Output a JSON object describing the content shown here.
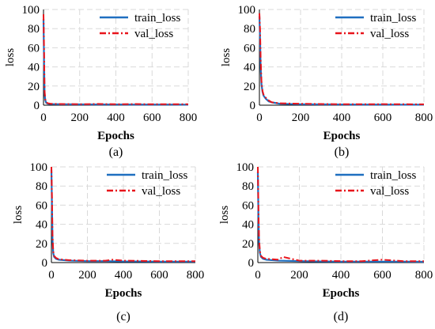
{
  "colors": {
    "train": "#1f6fc0",
    "val": "#e8141b",
    "grid": "#d9d9d9",
    "axis": "#000000",
    "text": "#000000"
  },
  "chart_data": [
    {
      "type": "line",
      "panel_label": "(a)",
      "xlabel": "Epochs",
      "ylabel": "loss",
      "xlim": [
        0,
        800
      ],
      "ylim": [
        0,
        100
      ],
      "xticks": [
        "0",
        "200",
        "400",
        "600",
        "800"
      ],
      "yticks": [
        "0",
        "20",
        "40",
        "60",
        "80",
        "100"
      ],
      "grid": true,
      "legend_position": "top-right",
      "series": [
        {
          "name": "train_loss",
          "style": "solid",
          "x": [
            0,
            3,
            6,
            10,
            15,
            25,
            40,
            100,
            200,
            300,
            400,
            500,
            600,
            700,
            800
          ],
          "y": [
            90,
            45,
            12,
            5,
            2.5,
            1.5,
            1.2,
            0.9,
            0.8,
            0.7,
            0.7,
            0.6,
            0.6,
            0.6,
            0.5
          ]
        },
        {
          "name": "val_loss",
          "style": "dashdot",
          "x": [
            0,
            3,
            6,
            10,
            15,
            25,
            40,
            100,
            200,
            300,
            400,
            500,
            600,
            700,
            800
          ],
          "y": [
            95,
            60,
            15,
            6,
            3,
            2,
            1.5,
            1.2,
            1,
            1.3,
            1,
            1.2,
            1,
            1,
            1
          ]
        }
      ]
    },
    {
      "type": "line",
      "panel_label": "(b)",
      "xlabel": "Epochs",
      "ylabel": "loss",
      "xlim": [
        0,
        800
      ],
      "ylim": [
        0,
        100
      ],
      "xticks": [
        "0",
        "200",
        "400",
        "600",
        "800"
      ],
      "yticks": [
        "0",
        "20",
        "40",
        "60",
        "80",
        "100"
      ],
      "grid": true,
      "legend_position": "top-right",
      "series": [
        {
          "name": "train_loss",
          "style": "solid",
          "x": [
            0,
            3,
            6,
            10,
            15,
            20,
            30,
            45,
            60,
            100,
            200,
            300,
            400,
            500,
            600,
            700,
            800
          ],
          "y": [
            93,
            70,
            40,
            22,
            14,
            10,
            7,
            4,
            3,
            1.5,
            1,
            0.8,
            0.7,
            0.6,
            0.6,
            0.5,
            0.5
          ]
        },
        {
          "name": "val_loss",
          "style": "dashdot",
          "x": [
            0,
            3,
            6,
            10,
            15,
            20,
            30,
            45,
            60,
            100,
            200,
            300,
            400,
            500,
            600,
            700,
            800
          ],
          "y": [
            96,
            80,
            50,
            25,
            15,
            11,
            8,
            5,
            3,
            2,
            1.5,
            1.2,
            1,
            1,
            1.1,
            1,
            0.9
          ]
        }
      ]
    },
    {
      "type": "line",
      "panel_label": "(c)",
      "xlabel": "Epochs",
      "ylabel": "loss",
      "xlim": [
        0,
        800
      ],
      "ylim": [
        0,
        100
      ],
      "xticks": [
        "0",
        "200",
        "400",
        "600",
        "800"
      ],
      "yticks": [
        "0",
        "20",
        "40",
        "60",
        "80",
        "100"
      ],
      "grid": true,
      "legend_position": "top-right",
      "series": [
        {
          "name": "train_loss",
          "style": "solid",
          "x": [
            0,
            3,
            6,
            10,
            15,
            25,
            40,
            100,
            200,
            300,
            400,
            500,
            600,
            700,
            800
          ],
          "y": [
            97,
            60,
            25,
            10,
            6,
            4,
            3,
            2,
            1.5,
            1.5,
            1.2,
            1.2,
            1,
            1,
            1
          ]
        },
        {
          "name": "val_loss",
          "style": "dashdot",
          "x": [
            0,
            3,
            6,
            10,
            15,
            25,
            40,
            100,
            200,
            300,
            340,
            400,
            500,
            600,
            700,
            800
          ],
          "y": [
            100,
            70,
            30,
            12,
            7,
            5,
            3.5,
            2.5,
            2,
            2,
            3,
            2,
            1.8,
            1.5,
            1.5,
            1.5
          ]
        }
      ]
    },
    {
      "type": "line",
      "panel_label": "(d)",
      "xlabel": "Epochs",
      "ylabel": "loss",
      "xlim": [
        0,
        800
      ],
      "ylim": [
        0,
        100
      ],
      "xticks": [
        "0",
        "200",
        "400",
        "600",
        "800"
      ],
      "yticks": [
        "0",
        "20",
        "40",
        "60",
        "80",
        "100"
      ],
      "grid": true,
      "legend_position": "top-right",
      "series": [
        {
          "name": "train_loss",
          "style": "solid",
          "x": [
            0,
            3,
            6,
            10,
            15,
            25,
            40,
            100,
            200,
            300,
            400,
            500,
            600,
            700,
            800
          ],
          "y": [
            95,
            45,
            20,
            10,
            6,
            4,
            3,
            2,
            1.5,
            1.2,
            1,
            1,
            1,
            1,
            0.8
          ]
        },
        {
          "name": "val_loss",
          "style": "dashdot",
          "x": [
            0,
            3,
            6,
            10,
            15,
            25,
            40,
            100,
            120,
            200,
            300,
            400,
            500,
            600,
            700,
            800
          ],
          "y": [
            100,
            55,
            25,
            12,
            7,
            5,
            4,
            3,
            6,
            2,
            2,
            1.5,
            1.5,
            3,
            1.5,
            1.5
          ]
        }
      ]
    }
  ]
}
